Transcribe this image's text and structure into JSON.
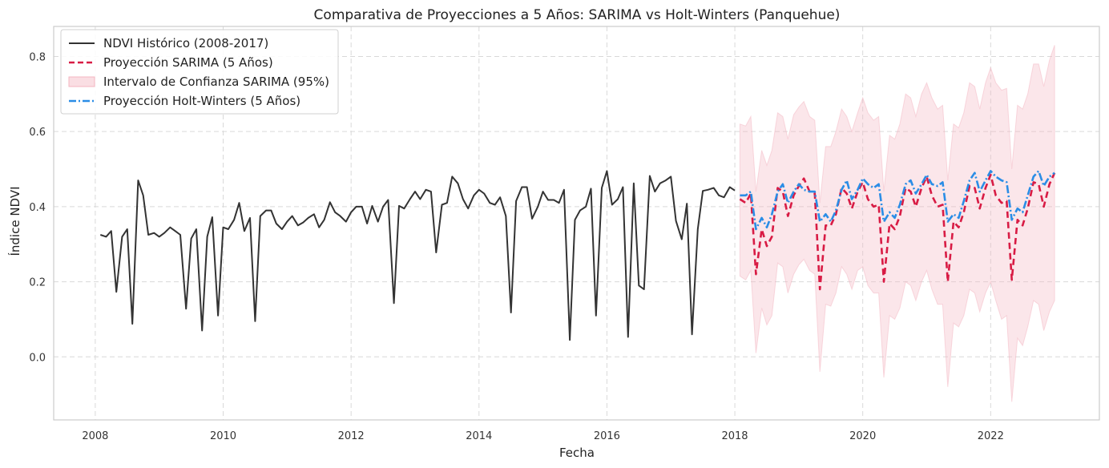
{
  "chart_data": {
    "type": "line",
    "title": "Comparativa de Proyecciones a 5 Años: SARIMA vs Holt-Winters (Panquehue)",
    "xlabel": "Fecha",
    "ylabel": "Índice NDVI",
    "xlim": [
      2007.35,
      2023.7
    ],
    "ylim": [
      -0.168,
      0.88
    ],
    "x_ticks": [
      2008,
      2010,
      2012,
      2014,
      2016,
      2018,
      2020,
      2022
    ],
    "x_tick_labels": [
      "2008",
      "2010",
      "2012",
      "2014",
      "2016",
      "2018",
      "2020",
      "2022"
    ],
    "y_ticks": [
      0.0,
      0.2,
      0.4,
      0.6,
      0.8
    ],
    "y_tick_labels": [
      "0.0",
      "0.2",
      "0.4",
      "0.6",
      "0.8"
    ],
    "grid": true,
    "legend_position": "top-left",
    "series": [
      {
        "name": "NDVI Histórico (2008-2017)",
        "style": "solid",
        "color": "#333333",
        "x": [
          2008.08,
          2008.17,
          2008.25,
          2008.33,
          2008.42,
          2008.5,
          2008.58,
          2008.67,
          2008.75,
          2008.83,
          2008.92,
          2009.0,
          2009.08,
          2009.17,
          2009.25,
          2009.33,
          2009.42,
          2009.5,
          2009.58,
          2009.67,
          2009.75,
          2009.83,
          2009.92,
          2010.0,
          2010.08,
          2010.17,
          2010.25,
          2010.33,
          2010.42,
          2010.5,
          2010.58,
          2010.67,
          2010.75,
          2010.83,
          2010.92,
          2011.0,
          2011.08,
          2011.17,
          2011.25,
          2011.33,
          2011.42,
          2011.5,
          2011.58,
          2011.67,
          2011.75,
          2011.83,
          2011.92,
          2012.0,
          2012.08,
          2012.17,
          2012.25,
          2012.33,
          2012.42,
          2012.5,
          2012.58,
          2012.67,
          2012.75,
          2012.83,
          2012.92,
          2013.0,
          2013.08,
          2013.17,
          2013.25,
          2013.33,
          2013.42,
          2013.5,
          2013.58,
          2013.67,
          2013.75,
          2013.83,
          2013.92,
          2014.0,
          2014.08,
          2014.17,
          2014.25,
          2014.33,
          2014.42,
          2014.5,
          2014.58,
          2014.67,
          2014.75,
          2014.83,
          2014.92,
          2015.0,
          2015.08,
          2015.17,
          2015.25,
          2015.33,
          2015.42,
          2015.5,
          2015.58,
          2015.67,
          2015.75,
          2015.83,
          2015.92,
          2016.0,
          2016.08,
          2016.17,
          2016.25,
          2016.33,
          2016.42,
          2016.5,
          2016.58,
          2016.67,
          2016.75,
          2016.83,
          2016.92,
          2017.0,
          2017.08,
          2017.17,
          2017.25,
          2017.33,
          2017.42,
          2017.5,
          2017.58,
          2017.67,
          2017.75,
          2017.83,
          2017.92,
          2018.0
        ],
        "values": [
          0.325,
          0.32,
          0.335,
          0.173,
          0.32,
          0.34,
          0.088,
          0.47,
          0.43,
          0.325,
          0.33,
          0.32,
          0.33,
          0.345,
          0.335,
          0.325,
          0.128,
          0.315,
          0.34,
          0.07,
          0.32,
          0.372,
          0.11,
          0.345,
          0.34,
          0.365,
          0.41,
          0.335,
          0.37,
          0.095,
          0.375,
          0.39,
          0.39,
          0.355,
          0.34,
          0.36,
          0.375,
          0.35,
          0.358,
          0.37,
          0.38,
          0.345,
          0.365,
          0.412,
          0.385,
          0.375,
          0.36,
          0.385,
          0.4,
          0.4,
          0.355,
          0.402,
          0.36,
          0.4,
          0.418,
          0.143,
          0.402,
          0.395,
          0.42,
          0.44,
          0.42,
          0.445,
          0.44,
          0.278,
          0.405,
          0.41,
          0.48,
          0.462,
          0.42,
          0.395,
          0.43,
          0.445,
          0.435,
          0.41,
          0.405,
          0.425,
          0.375,
          0.118,
          0.415,
          0.452,
          0.452,
          0.368,
          0.4,
          0.44,
          0.418,
          0.418,
          0.41,
          0.445,
          0.045,
          0.365,
          0.39,
          0.4,
          0.448,
          0.11,
          0.45,
          0.495,
          0.405,
          0.42,
          0.452,
          0.053,
          0.462,
          0.19,
          0.18,
          0.482,
          0.44,
          0.462,
          0.47,
          0.48,
          0.362,
          0.313,
          0.408,
          0.06,
          0.34,
          0.442,
          0.445,
          0.45,
          0.43,
          0.425,
          0.452,
          0.443
        ]
      },
      {
        "name": "Proyección SARIMA (5 Años)",
        "style": "dashed",
        "color": "#d81b44",
        "x": [
          2018.08,
          2018.17,
          2018.25,
          2018.33,
          2018.42,
          2018.5,
          2018.58,
          2018.67,
          2018.75,
          2018.83,
          2018.92,
          2019.0,
          2019.08,
          2019.17,
          2019.25,
          2019.33,
          2019.42,
          2019.5,
          2019.58,
          2019.67,
          2019.75,
          2019.83,
          2019.92,
          2020.0,
          2020.08,
          2020.17,
          2020.25,
          2020.33,
          2020.42,
          2020.5,
          2020.58,
          2020.67,
          2020.75,
          2020.83,
          2020.92,
          2021.0,
          2021.08,
          2021.17,
          2021.25,
          2021.33,
          2021.42,
          2021.5,
          2021.58,
          2021.67,
          2021.75,
          2021.83,
          2021.92,
          2022.0,
          2022.08,
          2022.17,
          2022.25,
          2022.33,
          2022.42,
          2022.5,
          2022.58,
          2022.67,
          2022.75,
          2022.83,
          2022.92,
          2023.0
        ],
        "values": [
          0.42,
          0.41,
          0.435,
          0.22,
          0.34,
          0.295,
          0.32,
          0.45,
          0.44,
          0.375,
          0.43,
          0.455,
          0.475,
          0.44,
          0.435,
          0.18,
          0.35,
          0.35,
          0.38,
          0.45,
          0.435,
          0.395,
          0.44,
          0.465,
          0.42,
          0.4,
          0.405,
          0.2,
          0.355,
          0.34,
          0.375,
          0.45,
          0.44,
          0.4,
          0.45,
          0.48,
          0.43,
          0.4,
          0.405,
          0.2,
          0.36,
          0.345,
          0.385,
          0.455,
          0.45,
          0.395,
          0.45,
          0.485,
          0.43,
          0.41,
          0.415,
          0.205,
          0.365,
          0.35,
          0.395,
          0.465,
          0.46,
          0.4,
          0.46,
          0.49
        ]
      },
      {
        "name": "Proyección Holt-Winters (5 Años)",
        "style": "dashdot",
        "color": "#2a8de6",
        "x": [
          2018.08,
          2018.17,
          2018.25,
          2018.33,
          2018.42,
          2018.5,
          2018.58,
          2018.67,
          2018.75,
          2018.83,
          2018.92,
          2019.0,
          2019.08,
          2019.17,
          2019.25,
          2019.33,
          2019.42,
          2019.5,
          2019.58,
          2019.67,
          2019.75,
          2019.83,
          2019.92,
          2020.0,
          2020.08,
          2020.17,
          2020.25,
          2020.33,
          2020.42,
          2020.5,
          2020.58,
          2020.67,
          2020.75,
          2020.83,
          2020.92,
          2021.0,
          2021.08,
          2021.17,
          2021.25,
          2021.33,
          2021.42,
          2021.5,
          2021.58,
          2021.67,
          2021.75,
          2021.83,
          2021.92,
          2022.0,
          2022.08,
          2022.17,
          2022.25,
          2022.33,
          2022.42,
          2022.5,
          2022.58,
          2022.67,
          2022.75,
          2022.83,
          2022.92,
          2023.0
        ],
        "values": [
          0.43,
          0.43,
          0.44,
          0.34,
          0.37,
          0.345,
          0.38,
          0.44,
          0.46,
          0.41,
          0.44,
          0.46,
          0.445,
          0.44,
          0.44,
          0.36,
          0.38,
          0.36,
          0.39,
          0.445,
          0.47,
          0.42,
          0.445,
          0.475,
          0.46,
          0.45,
          0.46,
          0.36,
          0.385,
          0.37,
          0.405,
          0.46,
          0.47,
          0.435,
          0.46,
          0.485,
          0.46,
          0.455,
          0.465,
          0.36,
          0.38,
          0.37,
          0.415,
          0.47,
          0.49,
          0.44,
          0.47,
          0.495,
          0.48,
          0.47,
          0.465,
          0.365,
          0.395,
          0.385,
          0.43,
          0.48,
          0.495,
          0.455,
          0.48,
          0.49
        ]
      }
    ],
    "confidence_band": {
      "name": "Intervalo de Confianza SARIMA (95%)",
      "color": "#f4b6c2",
      "x": [
        2018.08,
        2018.17,
        2018.25,
        2018.33,
        2018.42,
        2018.5,
        2018.58,
        2018.67,
        2018.75,
        2018.83,
        2018.92,
        2019.0,
        2019.08,
        2019.17,
        2019.25,
        2019.33,
        2019.42,
        2019.5,
        2019.58,
        2019.67,
        2019.75,
        2019.83,
        2019.92,
        2020.0,
        2020.08,
        2020.17,
        2020.25,
        2020.33,
        2020.42,
        2020.5,
        2020.58,
        2020.67,
        2020.75,
        2020.83,
        2020.92,
        2021.0,
        2021.08,
        2021.17,
        2021.25,
        2021.33,
        2021.42,
        2021.5,
        2021.58,
        2021.67,
        2021.75,
        2021.83,
        2021.92,
        2022.0,
        2022.08,
        2022.17,
        2022.25,
        2022.33,
        2022.42,
        2022.5,
        2022.58,
        2022.67,
        2022.75,
        2022.83,
        2022.92,
        2023.0
      ],
      "upper": [
        0.62,
        0.615,
        0.64,
        0.44,
        0.55,
        0.51,
        0.55,
        0.65,
        0.64,
        0.58,
        0.645,
        0.665,
        0.68,
        0.64,
        0.63,
        0.41,
        0.56,
        0.56,
        0.6,
        0.66,
        0.64,
        0.6,
        0.65,
        0.69,
        0.65,
        0.63,
        0.64,
        0.44,
        0.59,
        0.58,
        0.62,
        0.7,
        0.69,
        0.64,
        0.7,
        0.73,
        0.69,
        0.66,
        0.67,
        0.47,
        0.62,
        0.61,
        0.65,
        0.73,
        0.72,
        0.66,
        0.73,
        0.77,
        0.73,
        0.71,
        0.715,
        0.5,
        0.67,
        0.66,
        0.7,
        0.78,
        0.78,
        0.72,
        0.79,
        0.83
      ],
      "lower": [
        0.215,
        0.205,
        0.23,
        0.01,
        0.13,
        0.085,
        0.11,
        0.25,
        0.24,
        0.17,
        0.22,
        0.245,
        0.26,
        0.23,
        0.22,
        -0.04,
        0.14,
        0.135,
        0.17,
        0.24,
        0.22,
        0.18,
        0.23,
        0.24,
        0.19,
        0.17,
        0.17,
        -0.055,
        0.11,
        0.1,
        0.13,
        0.2,
        0.19,
        0.15,
        0.2,
        0.23,
        0.18,
        0.14,
        0.14,
        -0.08,
        0.09,
        0.08,
        0.11,
        0.18,
        0.17,
        0.12,
        0.17,
        0.2,
        0.15,
        0.1,
        0.11,
        -0.12,
        0.05,
        0.03,
        0.08,
        0.15,
        0.14,
        0.07,
        0.12,
        0.15
      ]
    }
  }
}
